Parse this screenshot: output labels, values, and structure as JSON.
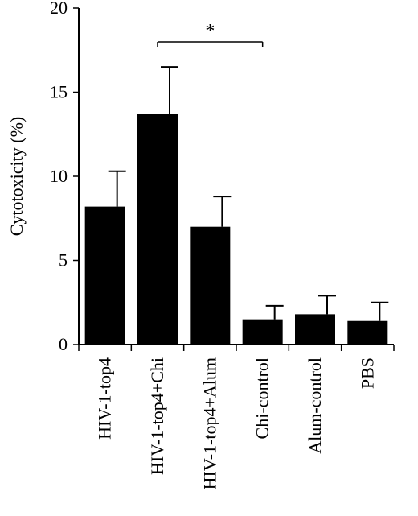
{
  "chart_data": {
    "type": "bar",
    "categories": [
      "HIV-1-top4",
      "HIV-1-top4+Chi",
      "HIV-1-top4+Alum",
      "Chi-control",
      "Alum-control",
      "PBS"
    ],
    "values": [
      8.2,
      13.7,
      7.0,
      1.5,
      1.8,
      1.4
    ],
    "error": [
      2.1,
      2.8,
      1.8,
      0.8,
      1.1,
      1.1
    ],
    "title": "",
    "xlabel": "",
    "ylabel": "Cytotoxicity (%)",
    "ylim": [
      0,
      20
    ],
    "yticks": [
      0,
      5,
      10,
      15,
      20
    ],
    "grid": false,
    "bar_color": "#000000",
    "significance": {
      "from_index": 1,
      "to_index": 3,
      "label": "*"
    }
  }
}
